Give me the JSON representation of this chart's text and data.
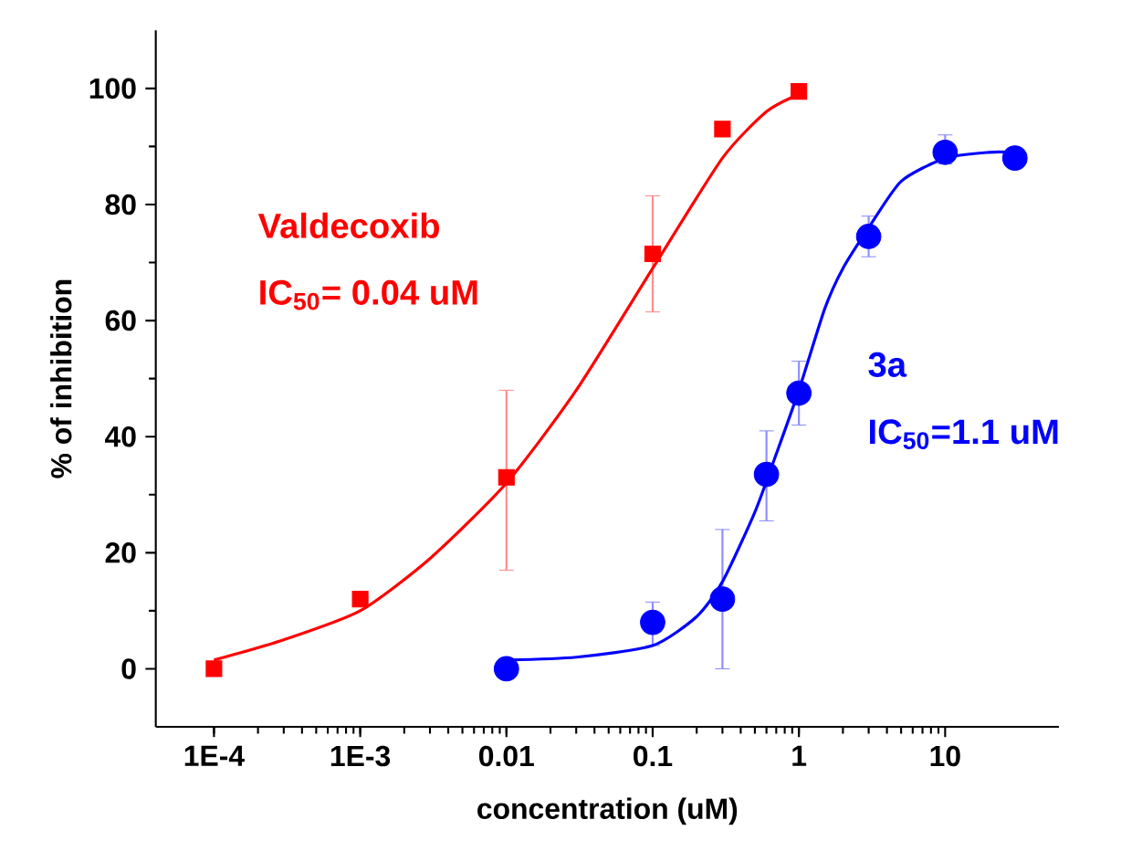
{
  "chart_data": {
    "type": "scatter",
    "xlabel": "concentration   (uM)",
    "ylabel": "% of inhibition",
    "log": "x",
    "xlim": [
      4e-05,
      60
    ],
    "ylim": [
      -10,
      110
    ],
    "xticks": [
      {
        "value": 0.0001,
        "label": "1E-4"
      },
      {
        "value": 0.001,
        "label": "1E-3"
      },
      {
        "value": 0.01,
        "label": "0.01"
      },
      {
        "value": 0.1,
        "label": "0.1"
      },
      {
        "value": 1,
        "label": "1"
      },
      {
        "value": 10,
        "label": "10"
      }
    ],
    "yticks": [
      0,
      20,
      40,
      60,
      80,
      100
    ],
    "annotations": [
      "Valdecoxib",
      "IC$_{50}$= 0.04 uM",
      "3a",
      "IC$_{50}$=1.1 uM"
    ],
    "series": [
      {
        "marker": "square",
        "color": "#ff0000",
        "x": [
          0.0001,
          0.001,
          0.01,
          0.1,
          0.3,
          1
        ],
        "values": [
          0,
          12,
          33,
          71.5,
          93,
          99.5
        ],
        "errors": [
          null,
          null,
          [
            17,
            48
          ],
          [
            61.5,
            81.5
          ],
          null,
          null
        ]
      },
      {
        "marker": "circle",
        "color": "#0000ff",
        "x": [
          0.01,
          0.1,
          0.3,
          0.6,
          1,
          3,
          10,
          30
        ],
        "values": [
          0,
          8,
          12,
          33.5,
          47.5,
          74.5,
          89,
          88
        ],
        "errors": [
          null,
          [
            4,
            11.5
          ],
          [
            0,
            24
          ],
          [
            25.5,
            41
          ],
          [
            42,
            53
          ],
          [
            71,
            78
          ],
          [
            87,
            92
          ],
          null
        ]
      },
      {
        "type": "line",
        "marker": "none",
        "line_style": "solid",
        "color": "#ff0000",
        "x": [
          0.0001,
          0.0003,
          0.001,
          0.003,
          0.01,
          0.03,
          0.1,
          0.3,
          0.6,
          1
        ],
        "values": [
          1.5,
          5,
          10,
          19,
          32,
          48,
          69,
          88,
          96,
          99
        ]
      },
      {
        "type": "line",
        "marker": "none",
        "line_style": "solid",
        "color": "#0000ff",
        "x": [
          0.01,
          0.03,
          0.1,
          0.2,
          0.3,
          0.5,
          0.7,
          1,
          1.5,
          2,
          3,
          5,
          10,
          20,
          30
        ],
        "values": [
          1.5,
          2,
          4,
          9,
          15,
          27,
          37,
          48,
          62,
          69,
          76,
          84,
          88,
          89,
          89
        ]
      }
    ]
  }
}
